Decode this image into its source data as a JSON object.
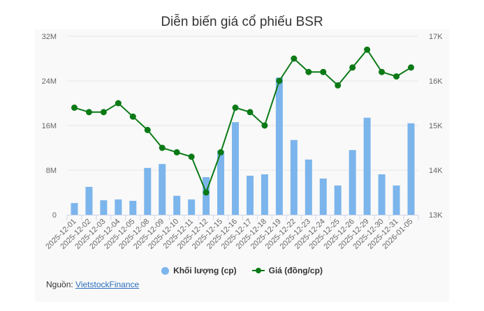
{
  "title": "Diễn biến giá cổ phiếu BSR",
  "legend": {
    "volume_label": "Khối lượng (cp)",
    "price_label": "Giá (đồng/cp)"
  },
  "source": {
    "prefix": "Nguồn: ",
    "link_text": "VietstockFinance"
  },
  "colors": {
    "bar": "#7cb5ec",
    "line": "#0b7a16",
    "grid": "#e6e6e6",
    "panel": "#f9f9f9"
  },
  "chart_data": {
    "type": "bar+line",
    "title": "Diễn biến giá cổ phiếu BSR",
    "categories": [
      "2025-12-01",
      "2025-12-02",
      "2025-12-03",
      "2025-12-04",
      "2025-12-05",
      "2025-12-08",
      "2025-12-09",
      "2025-12-10",
      "2025-12-11",
      "2025-12-12",
      "2025-12-15",
      "2025-12-16",
      "2025-12-17",
      "2025-12-18",
      "2025-12-19",
      "2025-12-22",
      "2025-12-23",
      "2025-12-24",
      "2025-12-25",
      "2025-12-26",
      "2025-12-29",
      "2025-12-30",
      "2025-12-31",
      "2026-01-05"
    ],
    "series": [
      {
        "name": "Khối lượng (cp)",
        "type": "bar",
        "axis": "left",
        "values": [
          2100000,
          5000000,
          2600000,
          2750000,
          2500000,
          8400000,
          9100000,
          3400000,
          2750000,
          6750000,
          11500000,
          16600000,
          7000000,
          7250000,
          24600000,
          13400000,
          9900000,
          6500000,
          5250000,
          11600000,
          17400000,
          7250000,
          5250000,
          16400000
        ]
      },
      {
        "name": "Giá (đồng/cp)",
        "type": "line",
        "axis": "right",
        "values": [
          15400,
          15300,
          15300,
          15500,
          15200,
          14900,
          14500,
          14400,
          14300,
          13500,
          14400,
          15400,
          15300,
          15000,
          16000,
          16500,
          16200,
          16200,
          15900,
          16300,
          16700,
          16200,
          16100,
          16300
        ]
      }
    ],
    "y_left": {
      "ticks": [
        "0",
        "8M",
        "16M",
        "24M",
        "32M"
      ],
      "range": [
        0,
        32000000
      ]
    },
    "y_right": {
      "ticks": [
        "13K",
        "14K",
        "15K",
        "16K",
        "17K"
      ],
      "range": [
        13000,
        17000
      ]
    },
    "xlabel": "",
    "ylabel_left": "",
    "ylabel_right": "",
    "grid": true,
    "legend_position": "bottom"
  }
}
